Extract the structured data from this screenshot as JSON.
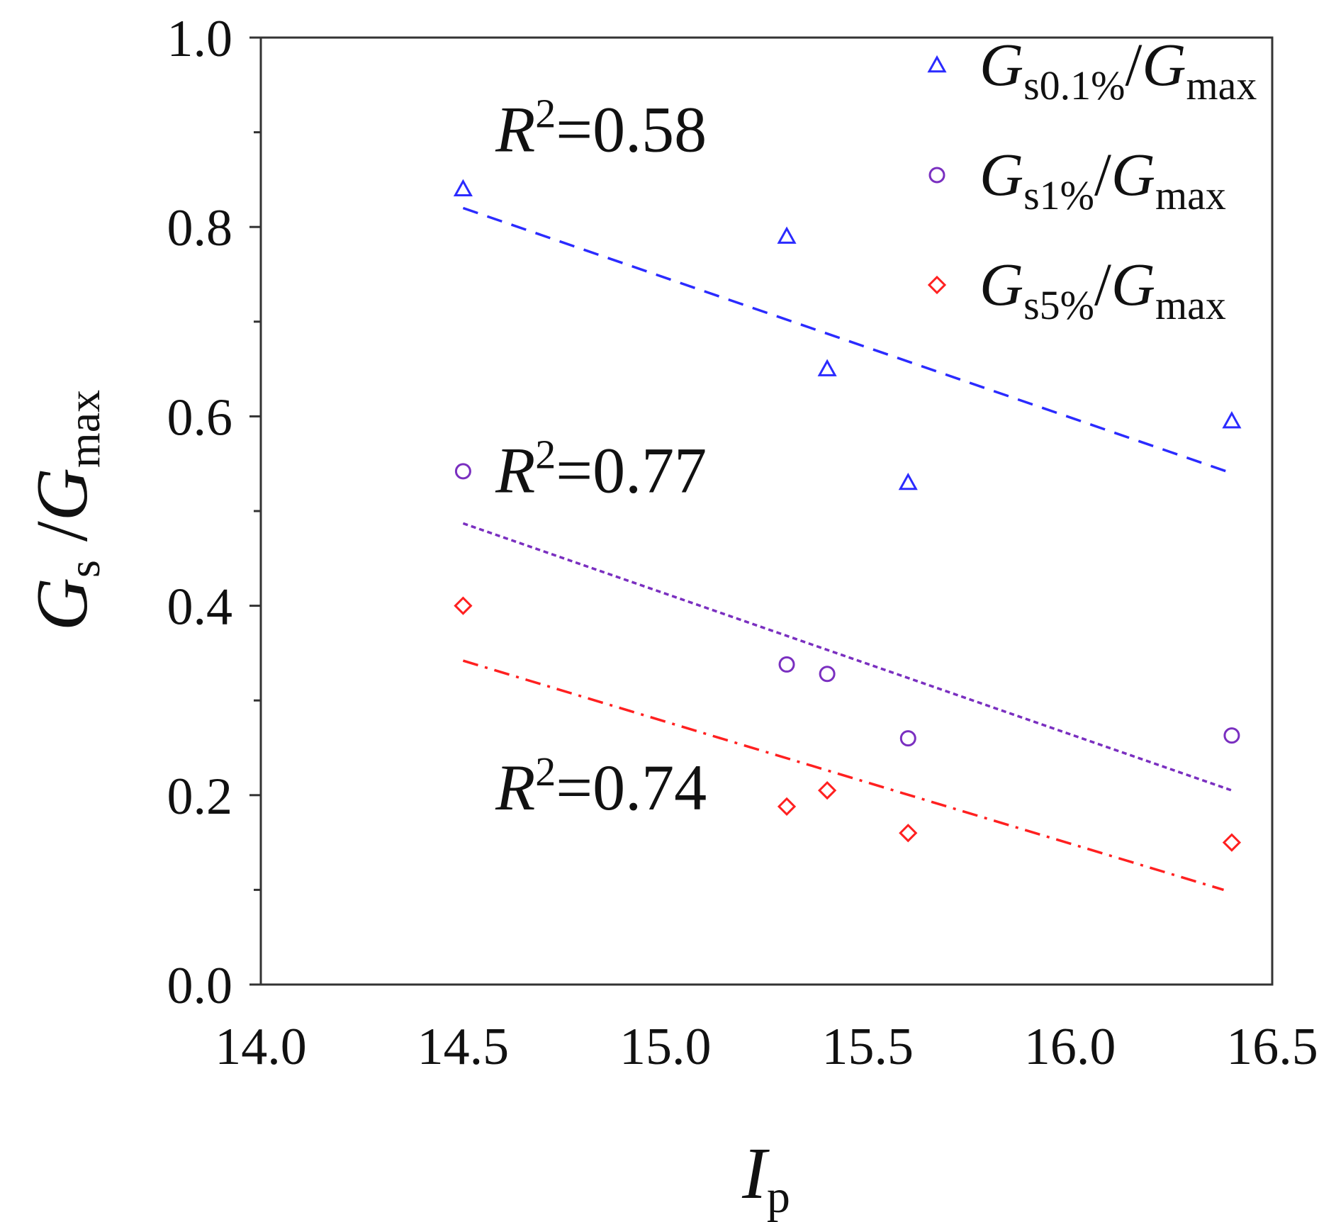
{
  "chart_data": {
    "type": "scatter",
    "xlim": [
      14.0,
      16.5
    ],
    "ylim": [
      0.0,
      1.0
    ],
    "x_ticks": [
      14.0,
      14.5,
      15.0,
      15.5,
      16.0,
      16.5
    ],
    "x_tick_labels": [
      "14.0",
      "14.5",
      "15.0",
      "15.5",
      "16.0",
      "16.5"
    ],
    "y_ticks": [
      0.0,
      0.2,
      0.4,
      0.6,
      0.8,
      1.0
    ],
    "y_tick_labels": [
      "0.0",
      "0.2",
      "0.4",
      "0.6",
      "0.8",
      "1.0"
    ],
    "y_minor_ticks": [
      0.1,
      0.3,
      0.5,
      0.7,
      0.9
    ],
    "xlabel": {
      "main": "I",
      "sub": "p"
    },
    "ylabel": {
      "main1": "G",
      "sub1": "s",
      "slash": " /",
      "main2": "G",
      "sub2": "max"
    },
    "grid": false,
    "legend_position": "top-right",
    "series": [
      {
        "name": "Gs0.1%/Gmax",
        "legend": {
          "main1": "G",
          "sub1": "s0.1%",
          "slash": "/",
          "main2": "G",
          "sub2": "max"
        },
        "marker": "triangle",
        "color": "#2b2bff",
        "x": [
          14.5,
          15.3,
          15.4,
          15.6,
          16.4
        ],
        "y": [
          0.84,
          0.79,
          0.65,
          0.53,
          0.595
        ],
        "fit": {
          "x": [
            14.5,
            16.4
          ],
          "y": [
            0.82,
            0.54
          ],
          "style": "dashed"
        },
        "r2_label": {
          "R": "R",
          "exp": "2",
          "value": "=0.58",
          "at": [
            14.58,
            0.88
          ]
        }
      },
      {
        "name": "Gs1%/Gmax",
        "legend": {
          "main1": "G",
          "sub1": "s1%",
          "slash": "/",
          "main2": "G",
          "sub2": "max"
        },
        "marker": "circle",
        "color": "#7a2fc0",
        "x": [
          14.5,
          15.3,
          15.4,
          15.6,
          16.4
        ],
        "y": [
          0.542,
          0.338,
          0.328,
          0.26,
          0.263
        ],
        "fit": {
          "x": [
            14.5,
            16.4
          ],
          "y": [
            0.487,
            0.205
          ],
          "style": "dotted"
        },
        "r2_label": {
          "R": "R",
          "exp": "2",
          "value": "=0.77",
          "at": [
            14.58,
            0.52
          ]
        }
      },
      {
        "name": "Gs5%/Gmax",
        "legend": {
          "main1": "G",
          "sub1": "s5%",
          "slash": "/",
          "main2": "G",
          "sub2": "max"
        },
        "marker": "diamond",
        "color": "#ff2020",
        "x": [
          14.5,
          15.3,
          15.4,
          15.6,
          16.4
        ],
        "y": [
          0.4,
          0.188,
          0.205,
          0.16,
          0.15
        ],
        "fit": {
          "x": [
            14.5,
            16.38
          ],
          "y": [
            0.342,
            0.1
          ],
          "style": "dashdot"
        },
        "r2_label": {
          "R": "R",
          "exp": "2",
          "value": "=0.74",
          "at": [
            14.58,
            0.185
          ]
        }
      }
    ]
  }
}
